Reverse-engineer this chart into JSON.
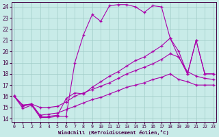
{
  "xlabel": "Windchill (Refroidissement éolien,°C)",
  "bg_color": "#c8ebe8",
  "grid_color": "#a0ccc8",
  "line_color": "#aa00aa",
  "line1_x": [
    0,
    1,
    2,
    3,
    4,
    5,
    6,
    7,
    8,
    9,
    10,
    11,
    12,
    13,
    14,
    15,
    16,
    17,
    18,
    19,
    20,
    21,
    22,
    23
  ],
  "line1_y": [
    16.0,
    14.9,
    15.2,
    14.1,
    14.1,
    14.2,
    14.2,
    19.0,
    21.5,
    23.3,
    22.7,
    24.1,
    24.2,
    24.2,
    24.0,
    23.5,
    24.1,
    24.0,
    21.2,
    20.0,
    18.0,
    21.0,
    18.0,
    18.0
  ],
  "line2_x": [
    0,
    1,
    2,
    3,
    4,
    5,
    6,
    7,
    8,
    9,
    10,
    11,
    12,
    13,
    14,
    15,
    16,
    17,
    18,
    19,
    20,
    21,
    22,
    23
  ],
  "line2_y": [
    16.0,
    15.1,
    15.3,
    14.2,
    14.2,
    14.3,
    15.8,
    16.3,
    16.2,
    16.8,
    17.3,
    17.8,
    18.2,
    18.7,
    19.2,
    19.5,
    20.0,
    20.5,
    21.2,
    19.5,
    18.0,
    21.0,
    18.0,
    18.0
  ],
  "line3_x": [
    0,
    1,
    2,
    3,
    4,
    5,
    6,
    7,
    8,
    9,
    10,
    11,
    12,
    13,
    14,
    15,
    16,
    17,
    18,
    19,
    20,
    21,
    22,
    23
  ],
  "line3_y": [
    16.0,
    15.2,
    15.3,
    15.0,
    15.0,
    15.1,
    15.5,
    16.0,
    16.3,
    16.6,
    16.9,
    17.2,
    17.6,
    18.0,
    18.3,
    18.6,
    18.9,
    19.3,
    19.8,
    19.5,
    18.2,
    17.8,
    17.6,
    17.5
  ],
  "line4_x": [
    0,
    1,
    2,
    3,
    4,
    5,
    6,
    7,
    8,
    9,
    10,
    11,
    12,
    13,
    14,
    15,
    16,
    17,
    18,
    19,
    20,
    21,
    22,
    23
  ],
  "line4_y": [
    16.0,
    15.2,
    15.3,
    14.3,
    14.4,
    14.5,
    14.8,
    15.1,
    15.4,
    15.7,
    15.9,
    16.2,
    16.5,
    16.8,
    17.0,
    17.2,
    17.5,
    17.7,
    18.0,
    17.5,
    17.3,
    17.0,
    17.0,
    17.0
  ],
  "xticks": [
    0,
    1,
    2,
    3,
    4,
    5,
    6,
    7,
    8,
    9,
    10,
    11,
    12,
    13,
    14,
    15,
    16,
    17,
    18,
    19,
    20,
    21,
    22,
    23
  ],
  "yticks": [
    14,
    15,
    16,
    17,
    18,
    19,
    20,
    21,
    22,
    23,
    24
  ],
  "xlim": [
    -0.3,
    23.3
  ],
  "ylim": [
    13.7,
    24.4
  ]
}
